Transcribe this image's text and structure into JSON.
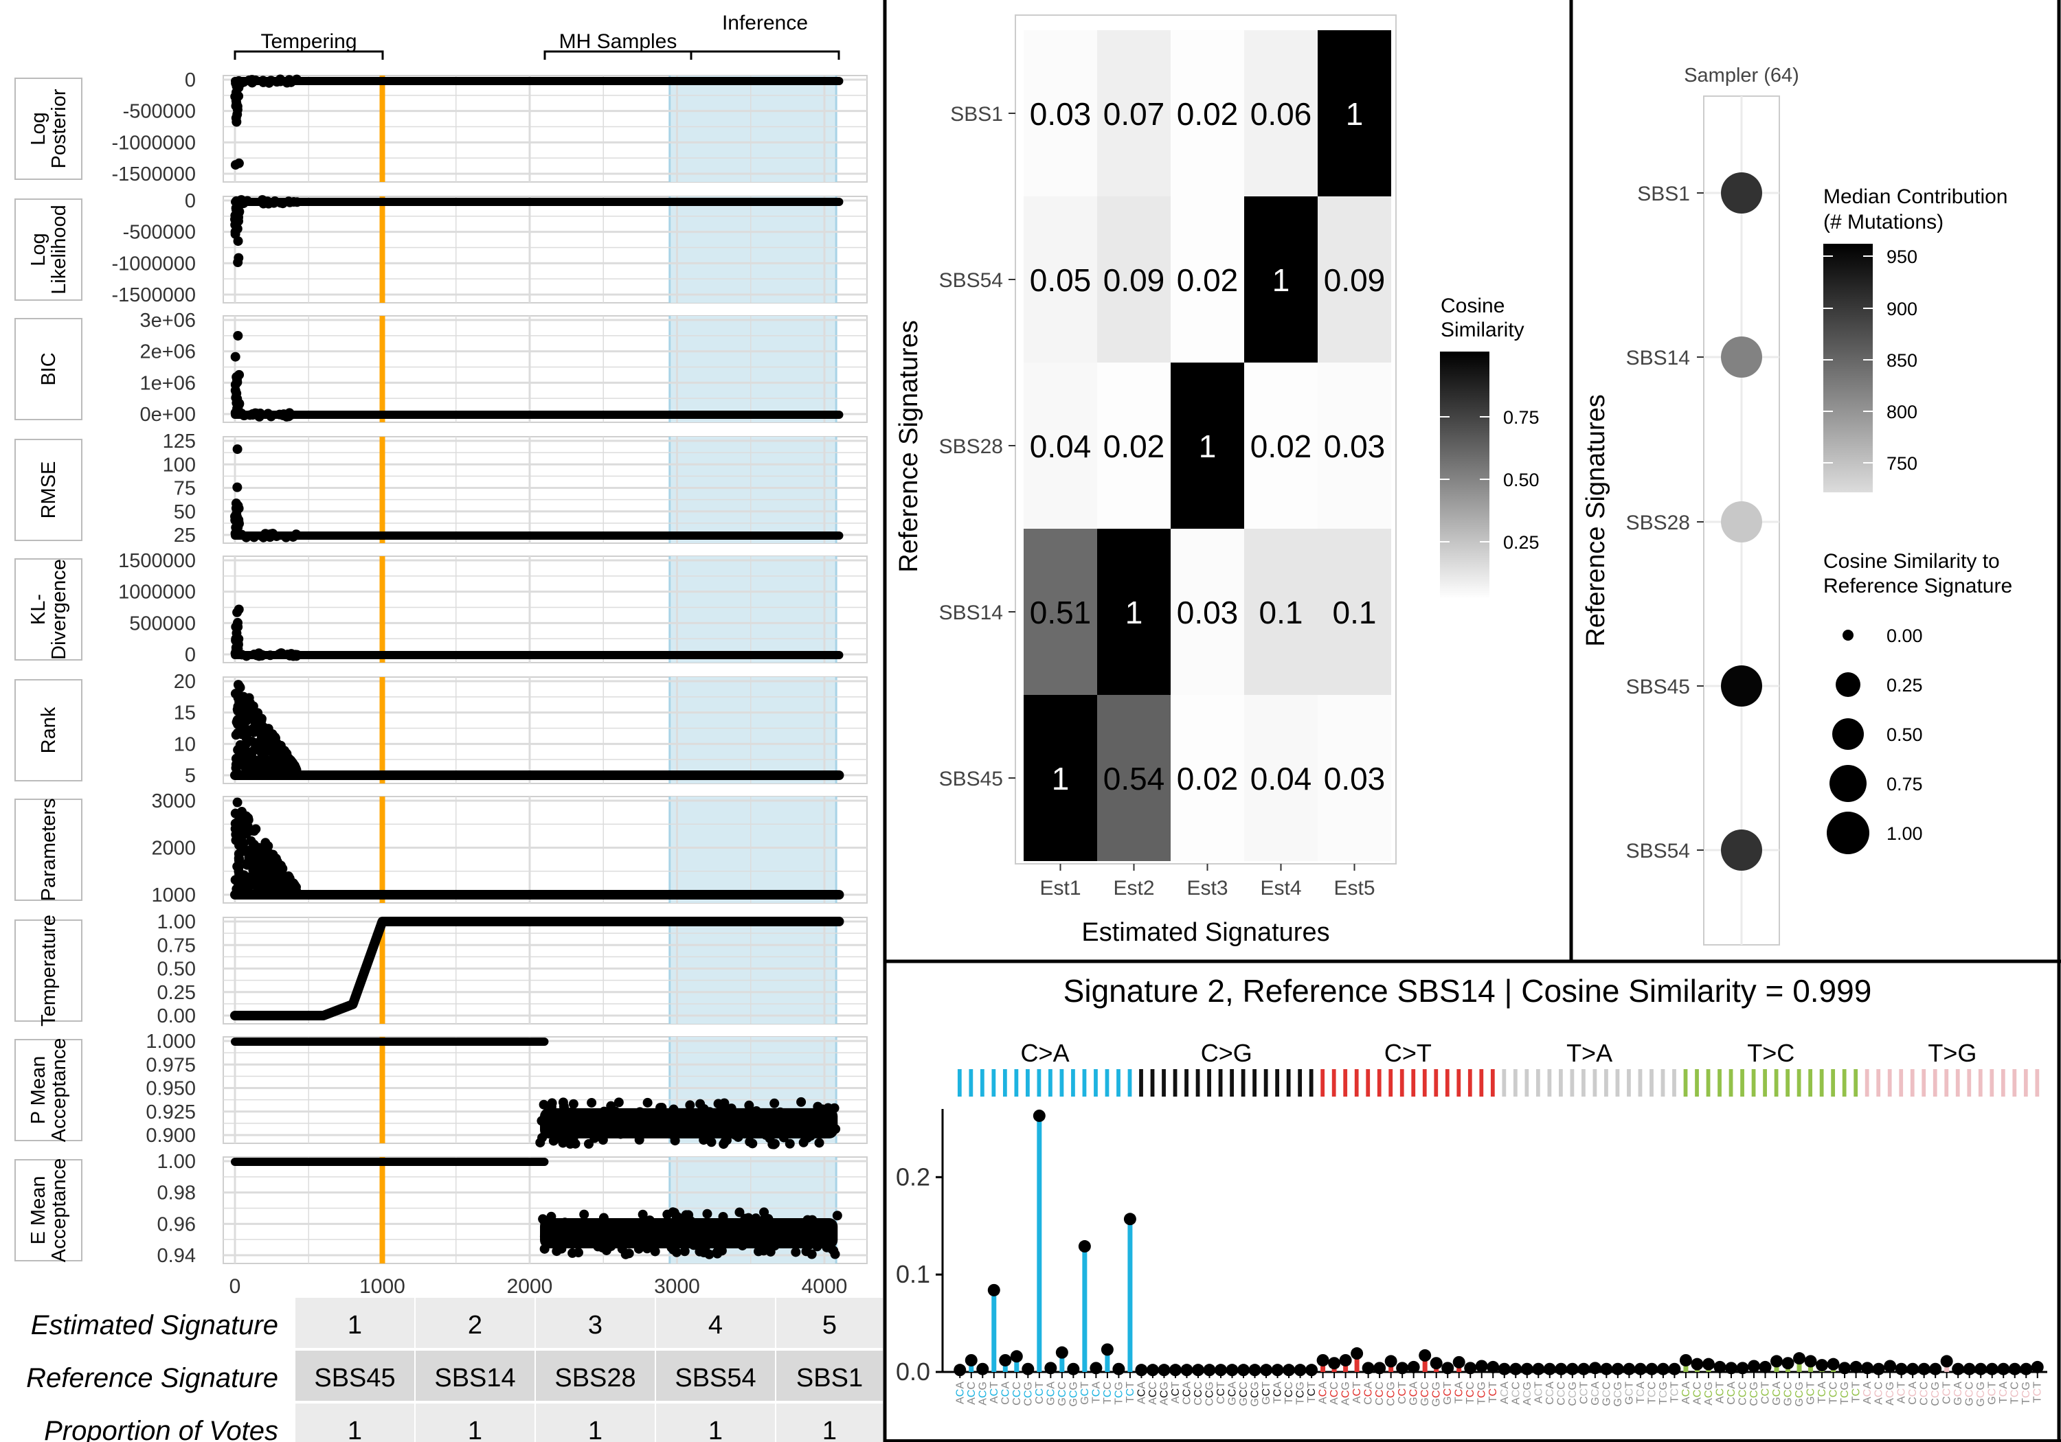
{
  "colors": {
    "orange": "#FFA500",
    "inference_band": "#D6EAF2",
    "inference_line": "#A8D3E6",
    "grid": "#DCDCDC",
    "c_a": "#1EB3E0",
    "c_g": "#111111",
    "c_t": "#E0332F",
    "t_a": "#CCCCCC",
    "t_c": "#93C14A",
    "t_g": "#EDBFC3"
  },
  "trace": {
    "phases": [
      "Tempering",
      "MH Samples",
      "Inference"
    ],
    "x_ticks": [
      "0",
      "1000",
      "2000",
      "3000",
      "4000"
    ],
    "panels": [
      {
        "name": "Log Posterior",
        "label_lines": [
          "Log",
          "Posterior"
        ],
        "ticks": [
          "0",
          "-500000",
          "-1000000",
          "-1500000"
        ]
      },
      {
        "name": "Log Likelihood",
        "label_lines": [
          "Log",
          "Likelihood"
        ],
        "ticks": [
          "0",
          "-500000",
          "-1000000",
          "-1500000"
        ]
      },
      {
        "name": "BIC",
        "label_lines": [
          "BIC"
        ],
        "ticks": [
          "3e+06",
          "2e+06",
          "1e+06",
          "0e+00"
        ]
      },
      {
        "name": "RMSE",
        "label_lines": [
          "RMSE"
        ],
        "ticks": [
          "125",
          "100",
          "75",
          "50",
          "25"
        ]
      },
      {
        "name": "KL-Divergence",
        "label_lines": [
          "KL-",
          "Divergence"
        ],
        "ticks": [
          "1500000",
          "1000000",
          "500000",
          "0"
        ]
      },
      {
        "name": "Rank",
        "label_lines": [
          "Rank"
        ],
        "ticks": [
          "20",
          "15",
          "10",
          "5"
        ]
      },
      {
        "name": "Parameters",
        "label_lines": [
          "Parameters"
        ],
        "ticks": [
          "3000",
          "2000",
          "1000"
        ]
      },
      {
        "name": "Temperature",
        "label_lines": [
          "Temperature"
        ],
        "ticks": [
          "1.00",
          "0.75",
          "0.50",
          "0.25",
          "0.00"
        ]
      },
      {
        "name": "P Mean Acceptance",
        "label_lines": [
          "P Mean",
          "Acceptance"
        ],
        "ticks": [
          "1.000",
          "0.975",
          "0.950",
          "0.925",
          "0.900"
        ]
      },
      {
        "name": "E Mean Acceptance",
        "label_lines": [
          "E Mean",
          "Acceptance"
        ],
        "ticks": [
          "1.00",
          "0.98",
          "0.96",
          "0.94"
        ]
      }
    ]
  },
  "assignment_table": {
    "row_labels": [
      "Estimated Signature",
      "Reference Signature",
      "Proportion of Votes"
    ],
    "estimated": [
      "1",
      "2",
      "3",
      "4",
      "5"
    ],
    "reference": [
      "SBS45",
      "SBS14",
      "SBS28",
      "SBS54",
      "SBS1"
    ],
    "votes": [
      "1",
      "1",
      "1",
      "1",
      "1"
    ]
  },
  "heatmap": {
    "xlabel": "Estimated Signatures",
    "ylabel": "Reference Signatures",
    "x": [
      "Est1",
      "Est2",
      "Est3",
      "Est4",
      "Est5"
    ],
    "y": [
      "SBS1",
      "SBS54",
      "SBS28",
      "SBS14",
      "SBS45"
    ],
    "values": [
      [
        0.03,
        0.07,
        0.02,
        0.06,
        1
      ],
      [
        0.05,
        0.09,
        0.02,
        1,
        0.09
      ],
      [
        0.04,
        0.02,
        1,
        0.02,
        0.03
      ],
      [
        0.51,
        1,
        0.03,
        0.1,
        0.1
      ],
      [
        1,
        0.54,
        0.02,
        0.04,
        0.03
      ]
    ],
    "cell_labels": [
      [
        "0.03",
        "0.07",
        "0.02",
        "0.06",
        "1"
      ],
      [
        "0.05",
        "0.09",
        "0.02",
        "1",
        "0.09"
      ],
      [
        "0.04",
        "0.02",
        "1",
        "0.02",
        "0.03"
      ],
      [
        "0.51",
        "1",
        "0.03",
        "0.1",
        "0.1"
      ],
      [
        "1",
        "0.54",
        "0.02",
        "0.04",
        "0.03"
      ]
    ],
    "legend_title": [
      "Cosine",
      "Similarity"
    ],
    "legend_ticks": [
      "0.75",
      "0.50",
      "0.25"
    ]
  },
  "dots": {
    "facet": "Sampler (64)",
    "ylabel": "Reference Signatures",
    "signatures": [
      "SBS1",
      "SBS14",
      "SBS28",
      "SBS45",
      "SBS54"
    ],
    "median": [
      910,
      830,
      760,
      955,
      910
    ],
    "cosine": [
      1.0,
      1.0,
      1.0,
      1.0,
      1.0
    ],
    "color_legend_title": [
      "Median Contribution",
      "(# Mutations)"
    ],
    "color_ticks": [
      "950",
      "900",
      "850",
      "800",
      "750"
    ],
    "size_legend_title": [
      "Cosine Similarity to",
      "Reference Signature"
    ],
    "size_ticks": [
      "0.00",
      "0.25",
      "0.50",
      "0.75",
      "1.00"
    ]
  },
  "chart_data": {
    "type": "bar",
    "title": "Signature 2, Reference SBS14 | Cosine Similarity = 0.999",
    "groups": [
      "C>A",
      "C>G",
      "C>T",
      "T>A",
      "T>C",
      "T>G"
    ],
    "y_ticks": [
      "0.0",
      "0.1",
      "0.2"
    ],
    "ylim": [
      0,
      0.27
    ],
    "contexts": [
      "ACA",
      "ACC",
      "ACG",
      "ACT",
      "CCA",
      "CCC",
      "CCG",
      "CCT",
      "GCA",
      "GCC",
      "GCG",
      "GCT",
      "TCA",
      "TCC",
      "TCG",
      "TCT"
    ],
    "values": [
      0.002,
      0.012,
      0.003,
      0.084,
      0.012,
      0.016,
      0.003,
      0.263,
      0.004,
      0.02,
      0.003,
      0.129,
      0.004,
      0.023,
      0.003,
      0.157,
      0.002,
      0.002,
      0.002,
      0.002,
      0.002,
      0.002,
      0.002,
      0.002,
      0.002,
      0.002,
      0.002,
      0.002,
      0.002,
      0.002,
      0.002,
      0.002,
      0.012,
      0.009,
      0.012,
      0.019,
      0.004,
      0.004,
      0.011,
      0.004,
      0.005,
      0.017,
      0.009,
      0.004,
      0.01,
      0.004,
      0.006,
      0.005,
      0.003,
      0.003,
      0.003,
      0.003,
      0.003,
      0.003,
      0.003,
      0.003,
      0.004,
      0.003,
      0.003,
      0.003,
      0.003,
      0.003,
      0.003,
      0.003,
      0.012,
      0.008,
      0.008,
      0.005,
      0.004,
      0.004,
      0.006,
      0.005,
      0.011,
      0.009,
      0.014,
      0.011,
      0.007,
      0.008,
      0.004,
      0.005,
      0.004,
      0.003,
      0.006,
      0.003,
      0.003,
      0.003,
      0.003,
      0.011,
      0.003,
      0.003,
      0.003,
      0.003,
      0.003,
      0.003,
      0.003,
      0.005
    ]
  }
}
